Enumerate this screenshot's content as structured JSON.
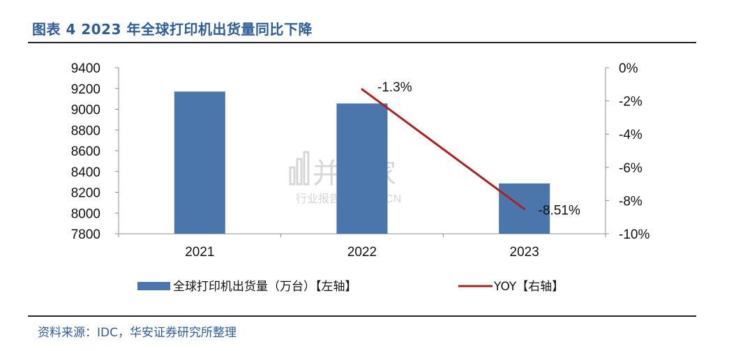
{
  "header": {
    "title": "图表 4 2023 年全球打印机出货量同比下降"
  },
  "footer": {
    "source": "资料来源：IDC，华安证券研究所整理"
  },
  "watermark": {
    "main": "并购家",
    "sub": "行业报告 IPOIPO.CN"
  },
  "colors": {
    "bar": "#4a76ab",
    "line": "#b01f24",
    "title": "#2e5c9a"
  },
  "chart_data": {
    "type": "bar+line",
    "categories": [
      "2021",
      "2022",
      "2023"
    ],
    "series": [
      {
        "name": "全球打印机出货量（万台）【左轴】",
        "type": "bar",
        "axis": "left",
        "values": [
          9170,
          9055,
          8285
        ]
      },
      {
        "name": "YOY【右轴】",
        "type": "line",
        "axis": "right",
        "values": [
          null,
          -1.3,
          -8.51
        ],
        "data_labels": [
          null,
          "-1.3%",
          "-8.51%"
        ]
      }
    ],
    "left_axis": {
      "min": 7800,
      "max": 9400,
      "ticks": [
        "9400",
        "9200",
        "9000",
        "8800",
        "8600",
        "8400",
        "8200",
        "8000",
        "7800"
      ]
    },
    "right_axis": {
      "min": -10,
      "max": 0,
      "ticks": [
        "0%",
        "-2%",
        "-4%",
        "-6%",
        "-8%",
        "-10%"
      ]
    },
    "legend_position": "bottom",
    "grid": false
  }
}
